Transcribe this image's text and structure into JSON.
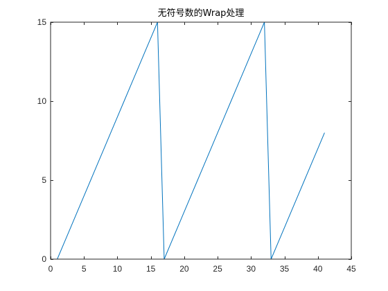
{
  "chart_data": {
    "type": "line",
    "title": "无符号数的Wrap处理",
    "xlabel": "",
    "ylabel": "",
    "xlim": [
      0,
      45
    ],
    "ylim": [
      0,
      15
    ],
    "xticks": [
      0,
      5,
      10,
      15,
      20,
      25,
      30,
      35,
      40,
      45
    ],
    "yticks": [
      0,
      5,
      10,
      15
    ],
    "grid": false,
    "legend": "none",
    "series": [
      {
        "color": "#0072BD",
        "x": [
          1,
          2,
          3,
          4,
          5,
          6,
          7,
          8,
          9,
          10,
          11,
          12,
          13,
          14,
          15,
          16,
          17,
          18,
          19,
          20,
          21,
          22,
          23,
          24,
          25,
          26,
          27,
          28,
          29,
          30,
          31,
          32,
          33,
          34,
          35,
          36,
          37,
          38,
          39,
          40,
          41
        ],
        "y": [
          0,
          1,
          2,
          3,
          4,
          5,
          6,
          7,
          8,
          9,
          10,
          11,
          12,
          13,
          14,
          15,
          0,
          1,
          2,
          3,
          4,
          5,
          6,
          7,
          8,
          9,
          10,
          11,
          12,
          13,
          14,
          15,
          0,
          1,
          2,
          3,
          4,
          5,
          6,
          7,
          8
        ]
      }
    ]
  }
}
